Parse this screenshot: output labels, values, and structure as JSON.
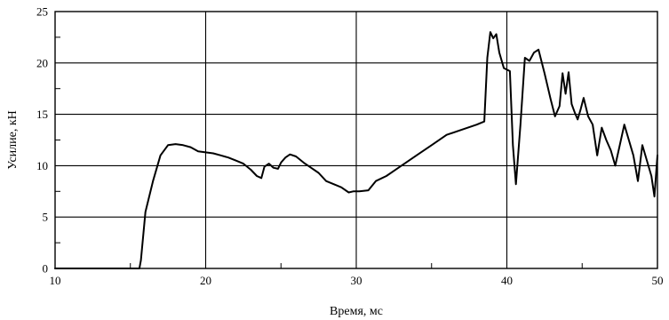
{
  "chart_data": {
    "type": "line",
    "xlabel": "Время, мс",
    "ylabel": "Усилие, кН",
    "xlim": [
      10,
      50
    ],
    "ylim": [
      0,
      25
    ],
    "xticks": [
      "10",
      "20",
      "30",
      "40",
      "50"
    ],
    "yticks": [
      "0",
      "5",
      "10",
      "15",
      "20",
      "25"
    ],
    "grid": true,
    "series": [
      {
        "x": [
          10,
          15.6,
          15.7,
          16.0,
          16.5,
          17.0,
          17.5,
          18.0,
          18.5,
          19.0,
          19.5,
          20.0,
          20.5,
          21.0,
          21.5,
          22.0,
          22.5,
          23.0,
          23.4,
          23.7,
          23.9,
          24.2,
          24.5,
          24.8,
          25.0,
          25.3,
          25.6,
          26.0,
          26.5,
          27.0,
          27.5,
          28.0,
          28.5,
          29.0,
          29.5,
          29.8,
          30.2,
          30.8,
          31.3,
          32.0,
          32.5,
          33.0,
          34.0,
          35.0,
          36.0,
          37.0,
          38.0,
          38.5,
          38.7,
          38.9,
          39.1,
          39.3,
          39.5,
          39.8,
          40.2,
          40.4,
          40.6,
          40.9,
          41.2,
          41.5,
          41.8,
          42.1,
          42.5,
          42.9,
          43.2,
          43.5,
          43.7,
          43.9,
          44.1,
          44.3,
          44.5,
          44.7,
          44.9,
          45.1,
          45.4,
          45.7,
          46.0,
          46.3,
          46.6,
          46.9,
          47.2,
          47.5,
          47.8,
          48.1,
          48.4,
          48.7,
          49.0,
          49.3,
          49.6,
          49.8,
          50.0
        ],
        "y": [
          0,
          0,
          0.8,
          5.5,
          8.5,
          11.0,
          12.0,
          12.1,
          12.0,
          11.8,
          11.4,
          11.3,
          11.2,
          11.0,
          10.8,
          10.5,
          10.2,
          9.6,
          9.0,
          8.8,
          9.9,
          10.2,
          9.8,
          9.7,
          10.3,
          10.8,
          11.1,
          10.9,
          10.3,
          9.8,
          9.3,
          8.5,
          8.2,
          7.9,
          7.4,
          7.5,
          7.5,
          7.6,
          8.5,
          9.0,
          9.5,
          10.0,
          11.0,
          12.0,
          13.0,
          13.5,
          14.0,
          14.3,
          20.5,
          23.0,
          22.4,
          22.8,
          21.0,
          19.5,
          19.2,
          12.0,
          8.2,
          14.0,
          20.5,
          20.2,
          21.0,
          21.3,
          19.0,
          16.5,
          14.8,
          15.8,
          19.0,
          17.0,
          19.1,
          16.0,
          15.2,
          14.5,
          15.5,
          16.6,
          14.8,
          14.0,
          11.0,
          13.7,
          12.5,
          11.5,
          10.0,
          12.0,
          14.0,
          12.5,
          11.0,
          8.5,
          12.0,
          10.5,
          9.0,
          7.0,
          11.0
        ]
      }
    ]
  }
}
